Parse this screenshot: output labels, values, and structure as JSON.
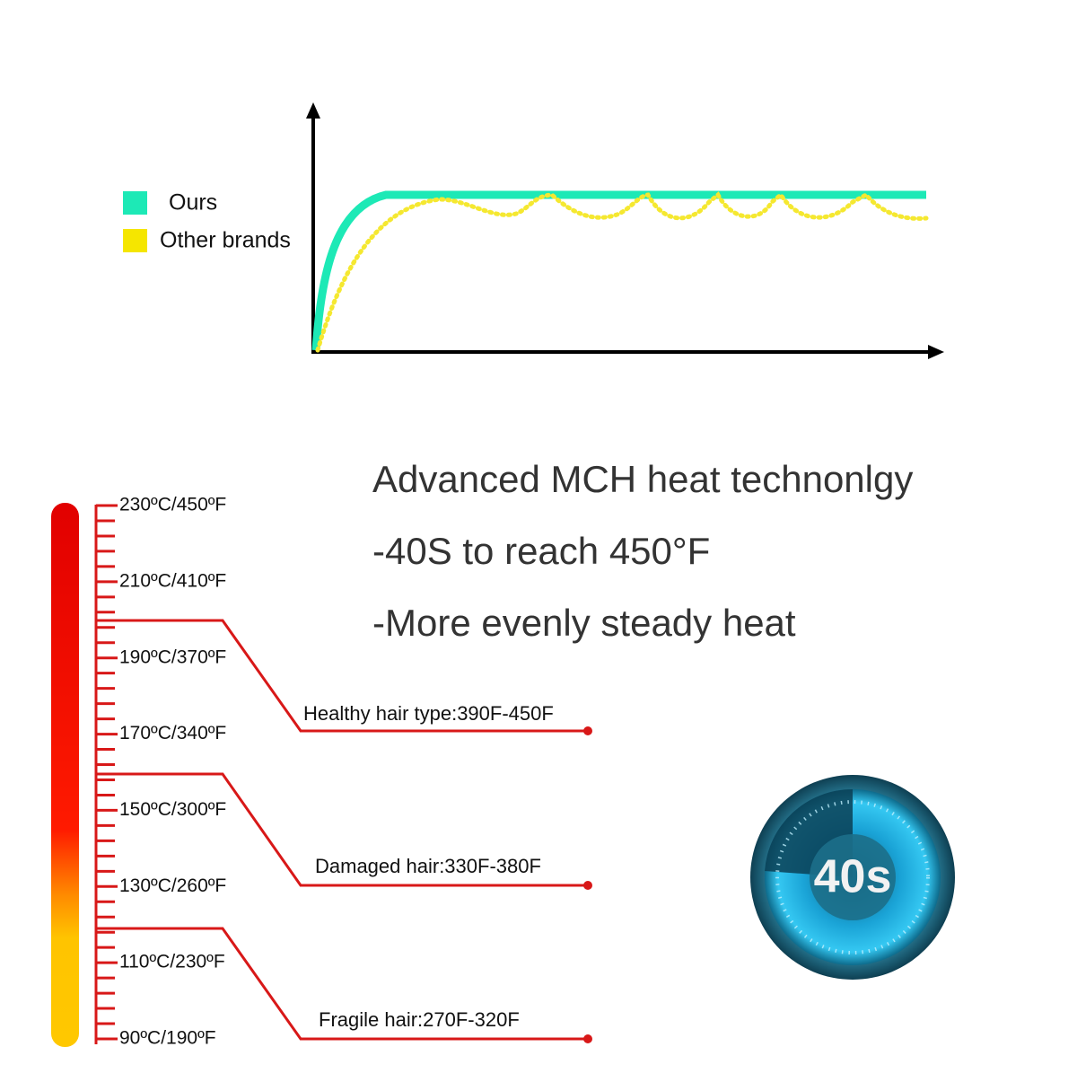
{
  "legend": [
    {
      "label": "Ours"
    },
    {
      "label": "Other brands"
    }
  ],
  "headline": [
    "Advanced MCH heat technonlgy",
    "-40S to reach 450°F",
    "-More evenly steady heat"
  ],
  "scale": {
    "labels": [
      "230ºC/450ºF",
      "210ºC/410ºF",
      "190ºC/370ºF",
      "170ºC/340ºF",
      "150ºC/300ºF",
      "130ºC/260ºF",
      "110ºC/230ºF",
      "90ºC/190ºF"
    ]
  },
  "hair_types": [
    "Healthy hair type:390F-450F",
    "Damaged hair:330F-380F",
    "Fragile hair:270F-320F"
  ],
  "badge": "40s"
}
